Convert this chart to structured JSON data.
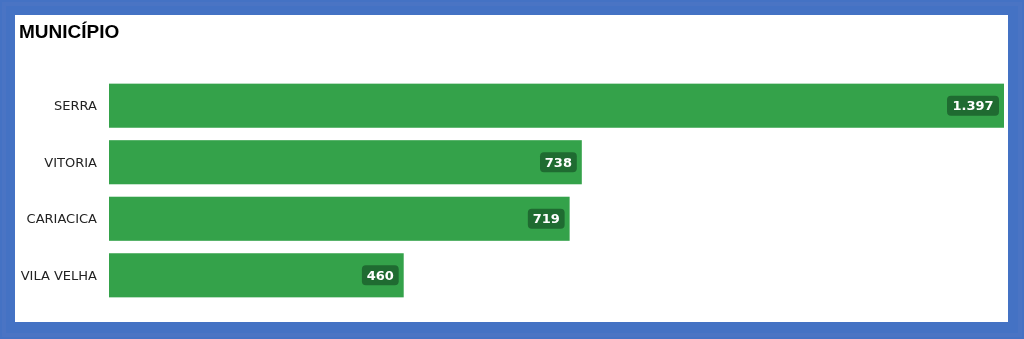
{
  "chart_data": {
    "type": "bar",
    "orientation": "horizontal",
    "title": "MUNICÍPIO",
    "categories": [
      "SERRA",
      "VITORIA",
      "CARIACICA",
      "VILA VELHA"
    ],
    "values": [
      1397,
      738,
      719,
      460
    ],
    "value_labels": [
      "1.397",
      "738",
      "719",
      "460"
    ],
    "color": "#34a24a"
  }
}
